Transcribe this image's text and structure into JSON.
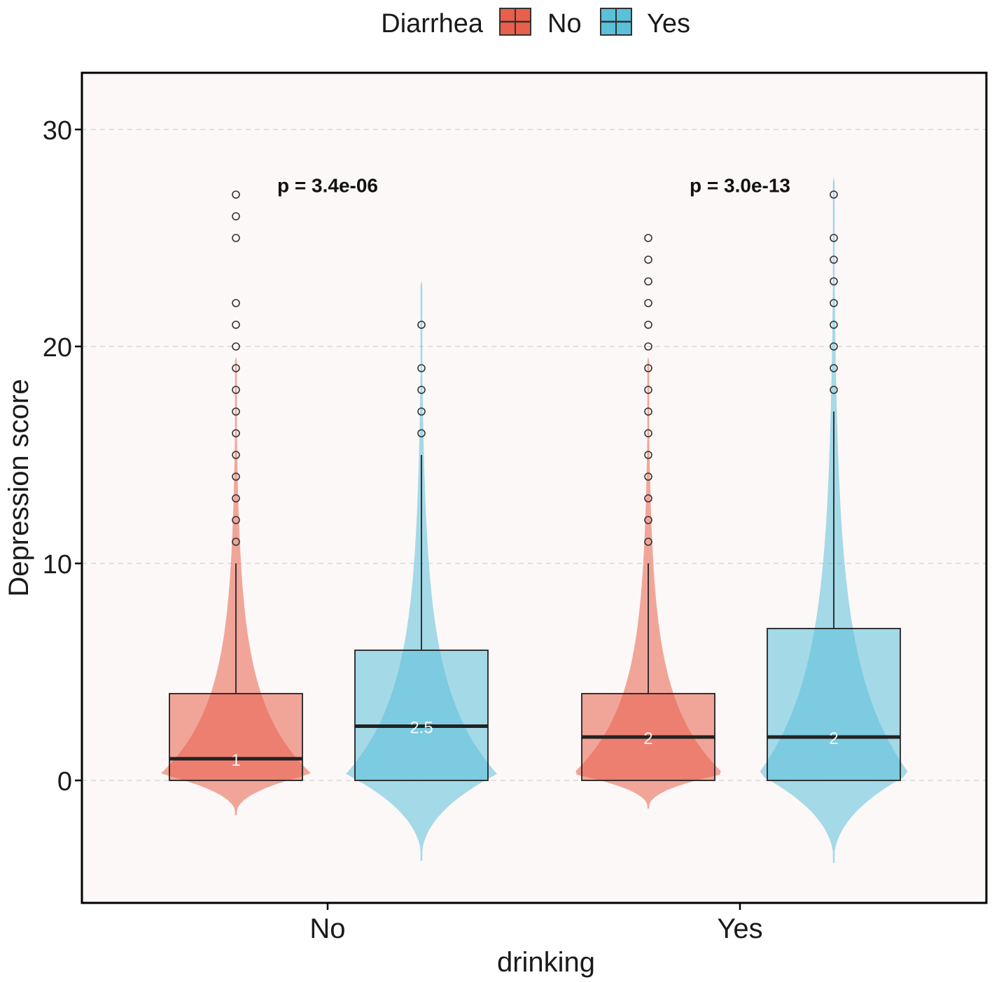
{
  "chart_data": {
    "type": "violin+box",
    "title": "",
    "xlabel": "drinking",
    "ylabel": "Depression score",
    "ylim": [
      -5,
      32
    ],
    "yticks": [
      0,
      10,
      20,
      30
    ],
    "categories": [
      "No",
      "Yes"
    ],
    "legend": {
      "title": "Diarrhea",
      "position": "top",
      "entries": [
        {
          "name": "No",
          "color": "#E8604C"
        },
        {
          "name": "Yes",
          "color": "#5BC0DA"
        }
      ]
    },
    "series": [
      {
        "name": "No",
        "color": "#E8604C",
        "groups": [
          {
            "category": "No",
            "q1": 0,
            "median": 1,
            "q3": 4,
            "whisker_low": 0,
            "whisker_high": 10,
            "median_label": "1",
            "outliers": [
              11,
              12,
              13,
              14,
              15,
              16,
              17,
              18,
              19,
              20,
              21,
              22,
              25,
              26,
              27
            ],
            "violin_min": -1.6,
            "violin_max": 19.5,
            "violin_max_halfwidth": 0.18
          },
          {
            "category": "Yes",
            "q1": 0,
            "median": 2,
            "q3": 4,
            "whisker_low": 0,
            "whisker_high": 10,
            "median_label": "2",
            "outliers": [
              11,
              12,
              13,
              14,
              15,
              16,
              17,
              18,
              19,
              20,
              21,
              22,
              23,
              24,
              25
            ],
            "violin_min": -1.3,
            "violin_max": 19.5,
            "violin_max_halfwidth": 0.18
          }
        ]
      },
      {
        "name": "Yes",
        "color": "#5BC0DA",
        "groups": [
          {
            "category": "No",
            "q1": 0,
            "median": 2.5,
            "q3": 6,
            "whisker_low": 0,
            "whisker_high": 15,
            "median_label": "2.5",
            "outliers": [
              16,
              17,
              18,
              19,
              21
            ],
            "violin_min": -3.7,
            "violin_max": 23,
            "violin_max_halfwidth": 0.18
          },
          {
            "category": "Yes",
            "q1": 0,
            "median": 2,
            "q3": 7,
            "whisker_low": 0,
            "whisker_high": 17,
            "median_label": "2",
            "outliers": [
              18,
              19,
              20,
              21,
              22,
              23,
              24,
              25,
              27
            ],
            "violin_min": -3.8,
            "violin_max": 27.8,
            "violin_max_halfwidth": 0.18
          }
        ]
      }
    ],
    "annotations": [
      {
        "category": "No",
        "text": "p = 3.4e-06",
        "y": 27.5
      },
      {
        "category": "Yes",
        "text": "p = 3.0e-13",
        "y": 27.5
      }
    ],
    "grid": {
      "major_y": true,
      "style": "dashed"
    }
  },
  "colors": {
    "panel_bg": "#FCF8F7",
    "grid": "#D8D8D8",
    "border": "#000000"
  }
}
